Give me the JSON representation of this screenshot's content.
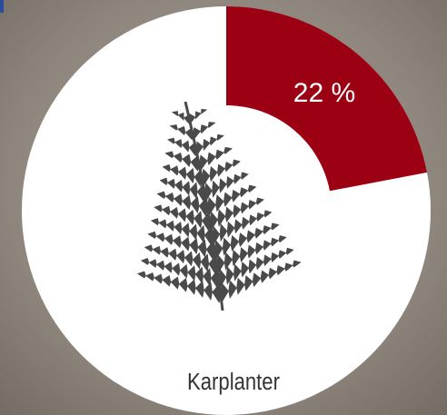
{
  "chart_data": {
    "type": "pie",
    "categories": [
      "Karplanter"
    ],
    "values": [
      22
    ],
    "value_labels": [
      "22 %"
    ],
    "color": "#9b0013"
  }
}
